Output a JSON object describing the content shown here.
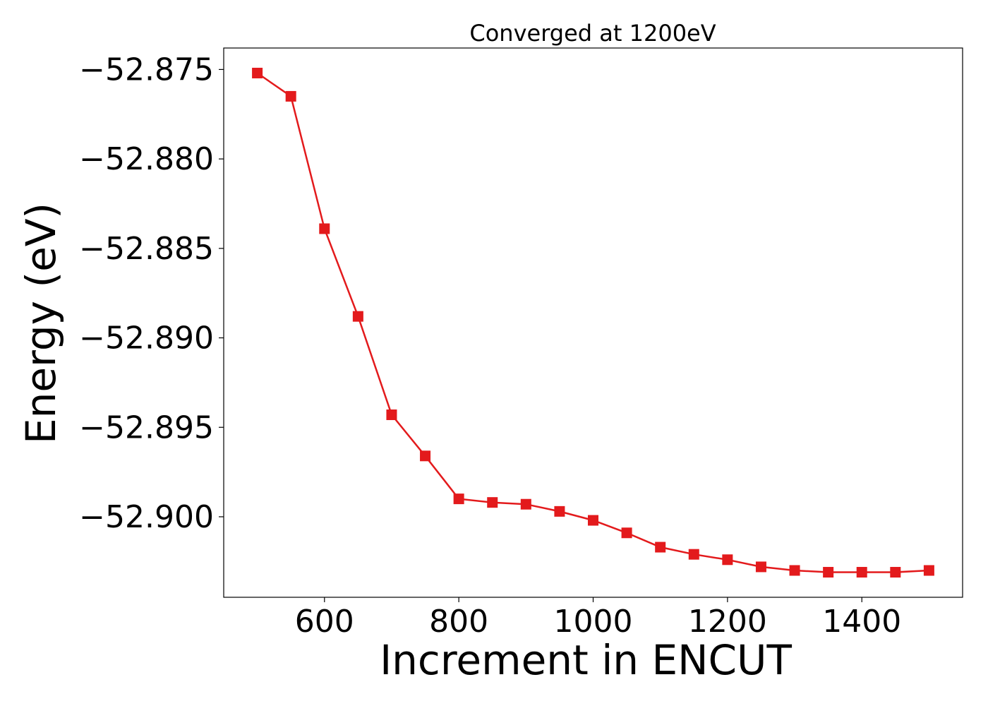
{
  "chart_data": {
    "type": "line",
    "title": "Converged at 1200eV",
    "xlabel": "Increment in ENCUT",
    "ylabel": "Energy (eV)",
    "xlim": [
      450,
      1550
    ],
    "ylim": [
      -52.9045,
      -52.8738
    ],
    "xticks": [
      600,
      800,
      1000,
      1200,
      1400
    ],
    "xtick_labels": [
      "600",
      "800",
      "1000",
      "1200",
      "1400"
    ],
    "yticks": [
      -52.875,
      -52.88,
      -52.885,
      -52.89,
      -52.895,
      -52.9
    ],
    "ytick_labels": [
      "−52.875",
      "−52.880",
      "−52.885",
      "−52.890",
      "−52.895",
      "−52.900"
    ],
    "grid": false,
    "series": [
      {
        "color": "#e31a1c",
        "marker": "square",
        "x": [
          500,
          550,
          600,
          650,
          700,
          750,
          800,
          850,
          900,
          950,
          1000,
          1050,
          1100,
          1150,
          1200,
          1250,
          1300,
          1350,
          1400,
          1450,
          1500
        ],
        "y": [
          -52.8752,
          -52.8765,
          -52.8839,
          -52.8888,
          -52.8943,
          -52.8966,
          -52.899,
          -52.8992,
          -52.8993,
          -52.8997,
          -52.9002,
          -52.9009,
          -52.9017,
          -52.9021,
          -52.9024,
          -52.9028,
          -52.903,
          -52.9031,
          -52.9031,
          -52.9031,
          -52.903
        ]
      }
    ]
  }
}
